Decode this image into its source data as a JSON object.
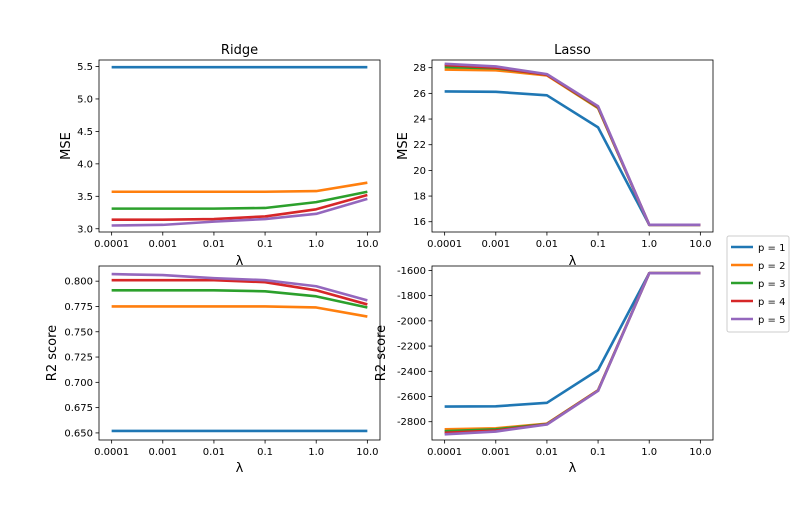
{
  "chart_data": [
    {
      "type": "line",
      "title": "Ridge",
      "xlabel": "λ",
      "ylabel": "MSE",
      "categories": [
        "0.0001",
        "0.001",
        "0.01",
        "0.1",
        "1.0",
        "10.0"
      ],
      "ylim": [
        2.95,
        5.6
      ],
      "yticks": [
        "3.0",
        "3.5",
        "4.0",
        "4.5",
        "5.0",
        "5.5"
      ],
      "series": [
        {
          "name": "p = 1",
          "color": "#1f77b4",
          "values": [
            5.49,
            5.49,
            5.49,
            5.49,
            5.49,
            5.49
          ]
        },
        {
          "name": "p = 2",
          "color": "#ff7f0e",
          "values": [
            3.57,
            3.57,
            3.57,
            3.57,
            3.58,
            3.71
          ]
        },
        {
          "name": "p = 3",
          "color": "#2ca02c",
          "values": [
            3.31,
            3.31,
            3.31,
            3.32,
            3.41,
            3.57
          ]
        },
        {
          "name": "p = 4",
          "color": "#d62728",
          "values": [
            3.14,
            3.14,
            3.15,
            3.19,
            3.3,
            3.52
          ]
        },
        {
          "name": "p = 5",
          "color": "#9467bd",
          "values": [
            3.05,
            3.06,
            3.11,
            3.15,
            3.23,
            3.46
          ]
        }
      ]
    },
    {
      "type": "line",
      "title": "Lasso",
      "xlabel": "λ",
      "ylabel": "MSE",
      "categories": [
        "0.0001",
        "0.001",
        "0.01",
        "0.1",
        "1.0",
        "10.0"
      ],
      "ylim": [
        15.2,
        28.6
      ],
      "yticks": [
        "16",
        "18",
        "20",
        "22",
        "24",
        "26",
        "28"
      ],
      "series": [
        {
          "name": "p = 1",
          "color": "#1f77b4",
          "values": [
            26.15,
            26.12,
            25.85,
            23.35,
            15.76,
            15.76
          ]
        },
        {
          "name": "p = 2",
          "color": "#ff7f0e",
          "values": [
            27.85,
            27.8,
            27.4,
            24.85,
            15.76,
            15.76
          ]
        },
        {
          "name": "p = 3",
          "color": "#2ca02c",
          "values": [
            28.05,
            27.95,
            27.45,
            24.9,
            15.76,
            15.76
          ]
        },
        {
          "name": "p = 4",
          "color": "#d62728",
          "values": [
            28.2,
            28.0,
            27.45,
            24.95,
            15.76,
            15.76
          ]
        },
        {
          "name": "p = 5",
          "color": "#9467bd",
          "values": [
            28.3,
            28.1,
            27.5,
            25.0,
            15.76,
            15.76
          ]
        }
      ]
    },
    {
      "type": "line",
      "title": "",
      "xlabel": "λ",
      "ylabel": "R2 score",
      "categories": [
        "0.0001",
        "0.001",
        "0.01",
        "0.1",
        "1.0",
        "10.0"
      ],
      "ylim": [
        0.643,
        0.815
      ],
      "yticks": [
        "0.650",
        "0.675",
        "0.700",
        "0.725",
        "0.750",
        "0.775",
        "0.800"
      ],
      "series": [
        {
          "name": "p = 1",
          "color": "#1f77b4",
          "values": [
            0.652,
            0.652,
            0.652,
            0.652,
            0.652,
            0.652
          ]
        },
        {
          "name": "p = 2",
          "color": "#ff7f0e",
          "values": [
            0.775,
            0.775,
            0.775,
            0.775,
            0.774,
            0.765
          ]
        },
        {
          "name": "p = 3",
          "color": "#2ca02c",
          "values": [
            0.791,
            0.791,
            0.791,
            0.79,
            0.785,
            0.774
          ]
        },
        {
          "name": "p = 4",
          "color": "#d62728",
          "values": [
            0.801,
            0.801,
            0.801,
            0.799,
            0.791,
            0.777
          ]
        },
        {
          "name": "p = 5",
          "color": "#9467bd",
          "values": [
            0.807,
            0.806,
            0.803,
            0.801,
            0.795,
            0.781
          ]
        }
      ]
    },
    {
      "type": "line",
      "title": "",
      "xlabel": "λ",
      "ylabel": "R2 score",
      "categories": [
        "0.0001",
        "0.001",
        "0.01",
        "0.1",
        "1.0",
        "10.0"
      ],
      "ylim": [
        -2945,
        -1565
      ],
      "yticks": [
        "-2800",
        "-2600",
        "-2400",
        "-2200",
        "-2000",
        "-1800",
        "-1600"
      ],
      "series": [
        {
          "name": "p = 1",
          "color": "#1f77b4",
          "values": [
            -2680,
            -2678,
            -2650,
            -2390,
            -1622,
            -1622
          ]
        },
        {
          "name": "p = 2",
          "color": "#ff7f0e",
          "values": [
            -2860,
            -2852,
            -2815,
            -2550,
            -1622,
            -1622
          ]
        },
        {
          "name": "p = 3",
          "color": "#2ca02c",
          "values": [
            -2875,
            -2860,
            -2818,
            -2552,
            -1622,
            -1622
          ]
        },
        {
          "name": "p = 4",
          "color": "#d62728",
          "values": [
            -2888,
            -2870,
            -2820,
            -2553,
            -1622,
            -1622
          ]
        },
        {
          "name": "p = 5",
          "color": "#9467bd",
          "values": [
            -2900,
            -2878,
            -2822,
            -2555,
            -1622,
            -1622
          ]
        }
      ]
    }
  ],
  "legend": {
    "placement": "center-right",
    "entries": [
      {
        "label": "p = 1",
        "color": "#1f77b4"
      },
      {
        "label": "p = 2",
        "color": "#ff7f0e"
      },
      {
        "label": "p = 3",
        "color": "#2ca02c"
      },
      {
        "label": "p = 4",
        "color": "#d62728"
      },
      {
        "label": "p = 5",
        "color": "#9467bd"
      }
    ]
  }
}
